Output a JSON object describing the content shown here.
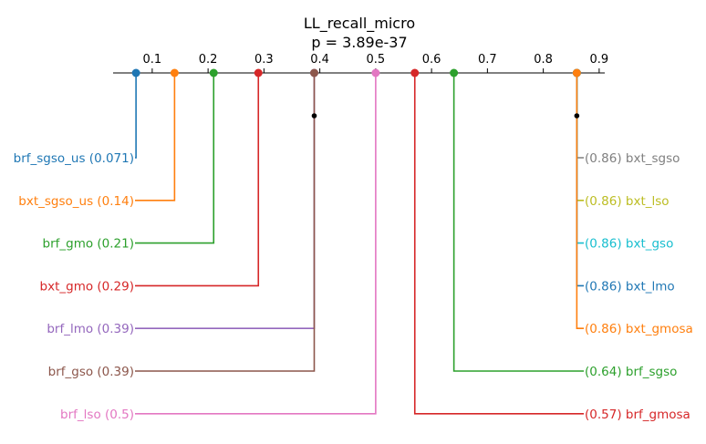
{
  "chart_data": {
    "type": "critical-difference",
    "title": "LL_recall_micro",
    "subtitle": "p = 3.89e-37",
    "xlim": [
      0.03,
      0.91
    ],
    "ticks": [
      0.1,
      0.2,
      0.3,
      0.4,
      0.5,
      0.6,
      0.7,
      0.8,
      0.9
    ],
    "tick_labels": [
      "0.1",
      "0.2",
      "0.3",
      "0.4",
      "0.5",
      "0.6",
      "0.7",
      "0.8",
      "0.9"
    ],
    "methods": [
      {
        "name": "brf_sgso_us",
        "value": 0.071,
        "label": "brf_sgso_us (0.071)",
        "side": "left",
        "color": "#1f77b4"
      },
      {
        "name": "bxt_sgso_us",
        "value": 0.14,
        "label": "bxt_sgso_us (0.14)",
        "side": "left",
        "color": "#ff7f0e"
      },
      {
        "name": "brf_gmo",
        "value": 0.21,
        "label": "brf_gmo (0.21)",
        "side": "left",
        "color": "#2ca02c"
      },
      {
        "name": "bxt_gmo",
        "value": 0.29,
        "label": "bxt_gmo (0.29)",
        "side": "left",
        "color": "#d62728"
      },
      {
        "name": "brf_lmo",
        "value": 0.39,
        "label": "brf_lmo (0.39)",
        "side": "left",
        "color": "#9467bd"
      },
      {
        "name": "brf_gso",
        "value": 0.39,
        "label": "brf_gso (0.39)",
        "side": "left",
        "color": "#8c564b"
      },
      {
        "name": "brf_lso",
        "value": 0.5,
        "label": "brf_lso (0.5)",
        "side": "left",
        "color": "#e377c2"
      },
      {
        "name": "bxt_sgso",
        "value": 0.86,
        "label": "(0.86) bxt_sgso",
        "side": "right",
        "color": "#7f7f7f"
      },
      {
        "name": "bxt_lso",
        "value": 0.86,
        "label": "(0.86) bxt_lso",
        "side": "right",
        "color": "#bcbd22"
      },
      {
        "name": "bxt_gso",
        "value": 0.86,
        "label": "(0.86) bxt_gso",
        "side": "right",
        "color": "#17becf"
      },
      {
        "name": "bxt_lmo",
        "value": 0.86,
        "label": "(0.86) bxt_lmo",
        "side": "right",
        "color": "#1f77b4"
      },
      {
        "name": "bxt_gmosa",
        "value": 0.86,
        "label": "(0.86) bxt_gmosa",
        "side": "right",
        "color": "#ff7f0e"
      },
      {
        "name": "brf_sgso",
        "value": 0.64,
        "label": "(0.64) brf_sgso",
        "side": "right",
        "color": "#2ca02c"
      },
      {
        "name": "brf_gmosa",
        "value": 0.57,
        "label": "(0.57) brf_gmosa",
        "side": "right",
        "color": "#d62728"
      }
    ],
    "cliques": [
      {
        "values": [
          0.39,
          0.39
        ]
      },
      {
        "values": [
          0.86,
          0.86
        ]
      }
    ]
  }
}
